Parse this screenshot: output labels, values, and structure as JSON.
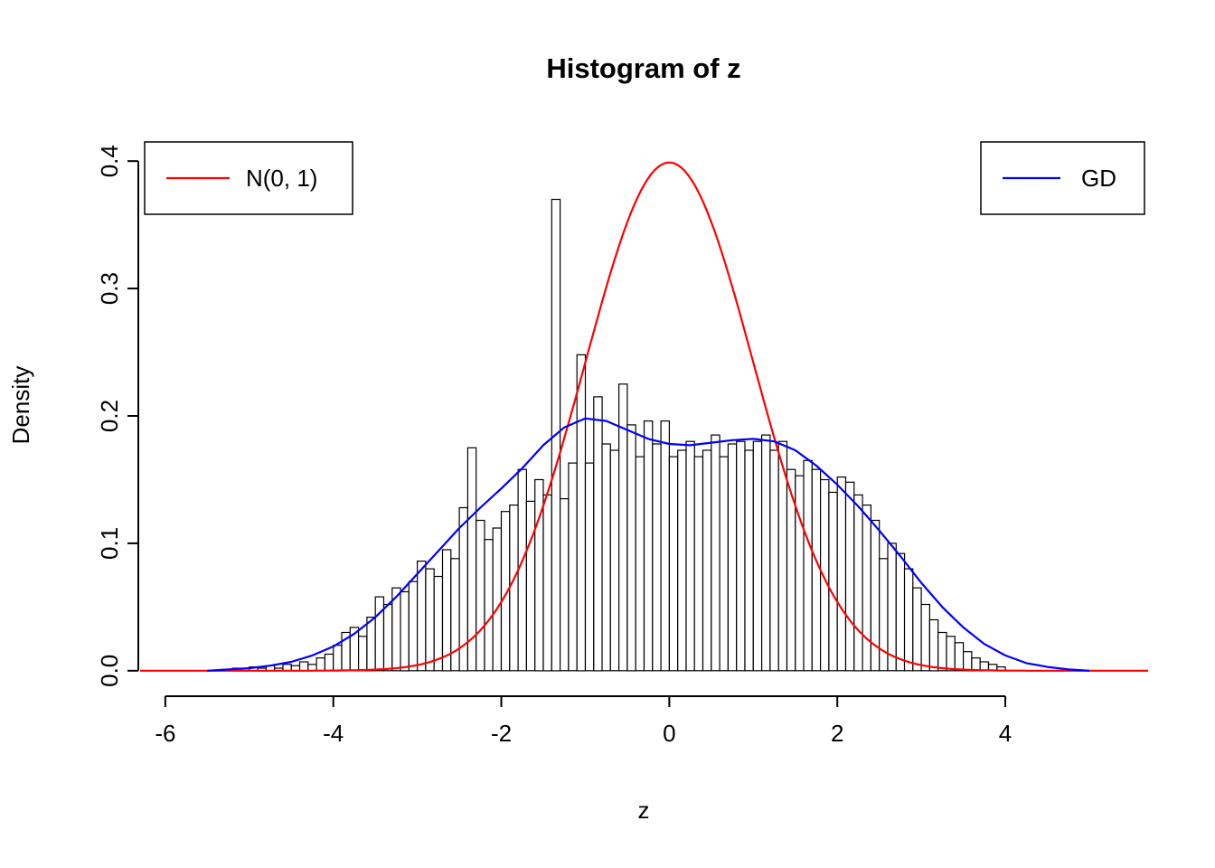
{
  "title": "Histogram of z",
  "xlabel": "z",
  "ylabel": "Density",
  "legend_left": {
    "label": "N(0, 1)",
    "color": "#FF0000",
    "position": "topleft"
  },
  "legend_right": {
    "label": "GD",
    "color": "#0000FF",
    "position": "topright"
  },
  "chart_data": {
    "type": "bar",
    "subtype": "histogram-with-density-curves",
    "title": "Histogram of z",
    "xlabel": "z",
    "ylabel": "Density",
    "xlim": [
      -6.3,
      5.7
    ],
    "ylim": [
      -0.02,
      0.42
    ],
    "x_ticks": [
      -6,
      -4,
      -2,
      0,
      2,
      4
    ],
    "y_ticks": [
      0.0,
      0.1,
      0.2,
      0.3,
      0.4
    ],
    "x_tick_labels": [
      "-6",
      "-4",
      "-2",
      "0",
      "2",
      "4"
    ],
    "y_tick_labels": [
      "0.0",
      "0.1",
      "0.2",
      "0.3",
      "0.4"
    ],
    "grid": false,
    "histogram": {
      "bin_start": -5.2,
      "bin_width": 0.1,
      "fill": "#FFFFFF",
      "stroke": "#000000",
      "densities": [
        0.002,
        0,
        0.003,
        0.002,
        0.004,
        0.002,
        0.005,
        0.004,
        0.007,
        0.005,
        0.01,
        0.013,
        0.02,
        0.03,
        0.034,
        0.027,
        0.042,
        0.058,
        0.052,
        0.065,
        0.062,
        0.07,
        0.086,
        0.08,
        0.074,
        0.095,
        0.088,
        0.128,
        0.175,
        0.118,
        0.103,
        0.112,
        0.125,
        0.13,
        0.158,
        0.133,
        0.15,
        0.138,
        0.37,
        0.135,
        0.163,
        0.248,
        0.163,
        0.215,
        0.178,
        0.173,
        0.225,
        0.193,
        0.168,
        0.196,
        0.178,
        0.196,
        0.168,
        0.173,
        0.18,
        0.168,
        0.173,
        0.185,
        0.168,
        0.178,
        0.18,
        0.173,
        0.18,
        0.185,
        0.173,
        0.18,
        0.158,
        0.153,
        0.165,
        0.158,
        0.15,
        0.14,
        0.152,
        0.148,
        0.138,
        0.13,
        0.118,
        0.088,
        0.1,
        0.092,
        0.08,
        0.065,
        0.052,
        0.04,
        0.03,
        0.027,
        0.022,
        0.015,
        0.01,
        0.007,
        0.005,
        0.003
      ]
    },
    "curves": [
      {
        "name": "N(0, 1)",
        "color": "#FF0000",
        "kind": "normal",
        "mean": 0,
        "sd": 1
      },
      {
        "name": "GD",
        "color": "#0000FF",
        "kind": "points",
        "x": [
          -5.5,
          -5.25,
          -5,
          -4.75,
          -4.5,
          -4.25,
          -4,
          -3.75,
          -3.5,
          -3.25,
          -3,
          -2.75,
          -2.5,
          -2.25,
          -2,
          -1.75,
          -1.5,
          -1.25,
          -1,
          -0.75,
          -0.5,
          -0.25,
          0,
          0.25,
          0.5,
          0.75,
          1,
          1.25,
          1.5,
          1.75,
          2,
          2.25,
          2.5,
          2.75,
          3,
          3.25,
          3.5,
          3.75,
          4,
          4.25,
          4.5,
          4.75,
          5
        ],
        "y": [
          0,
          0.001,
          0.002,
          0.004,
          0.007,
          0.012,
          0.019,
          0.029,
          0.042,
          0.058,
          0.076,
          0.094,
          0.112,
          0.128,
          0.143,
          0.159,
          0.177,
          0.191,
          0.198,
          0.196,
          0.189,
          0.182,
          0.178,
          0.177,
          0.179,
          0.181,
          0.182,
          0.18,
          0.173,
          0.161,
          0.146,
          0.129,
          0.11,
          0.09,
          0.069,
          0.05,
          0.034,
          0.021,
          0.012,
          0.006,
          0.003,
          0.001,
          0
        ]
      }
    ],
    "legend": [
      {
        "label": "N(0, 1)",
        "color": "#FF0000",
        "position": "topleft"
      },
      {
        "label": "GD",
        "color": "#0000FF",
        "position": "topright"
      }
    ]
  }
}
